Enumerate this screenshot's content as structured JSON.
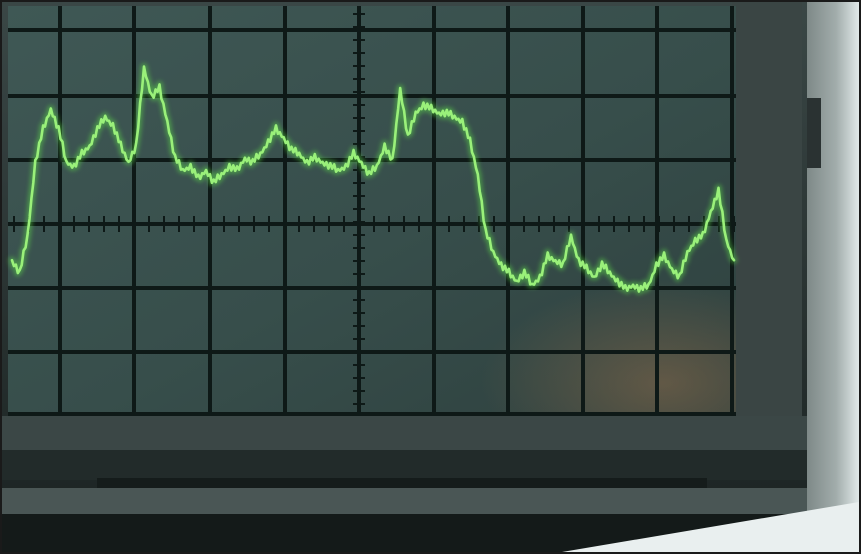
{
  "scene": {
    "subject-icon": "oscilloscope-icon",
    "colors": {
      "trace": "#9af07a",
      "trace_glow": "#5fe04a",
      "screen": "#3c5552",
      "grid": "#0e1917",
      "bezel": "#2a3433",
      "wall": "#e6eded"
    }
  },
  "trace": {
    "samples": [
      0.38,
      0.35,
      0.44,
      0.62,
      0.7,
      0.75,
      0.7,
      0.62,
      0.61,
      0.64,
      0.66,
      0.7,
      0.73,
      0.71,
      0.66,
      0.62,
      0.66,
      0.85,
      0.78,
      0.8,
      0.72,
      0.63,
      0.6,
      0.61,
      0.58,
      0.6,
      0.57,
      0.59,
      0.61,
      0.6,
      0.63,
      0.62,
      0.64,
      0.67,
      0.7,
      0.68,
      0.65,
      0.64,
      0.62,
      0.63,
      0.62,
      0.61,
      0.6,
      0.61,
      0.64,
      0.62,
      0.59,
      0.61,
      0.66,
      0.62,
      0.8,
      0.68,
      0.74,
      0.76,
      0.75,
      0.74,
      0.74,
      0.73,
      0.72,
      0.67,
      0.59,
      0.45,
      0.4,
      0.37,
      0.35,
      0.33,
      0.35,
      0.32,
      0.34,
      0.39,
      0.38,
      0.37,
      0.44,
      0.38,
      0.36,
      0.34,
      0.37,
      0.35,
      0.33,
      0.31,
      0.32,
      0.31,
      0.32,
      0.37,
      0.39,
      0.36,
      0.34,
      0.4,
      0.43,
      0.44,
      0.5,
      0.55,
      0.43,
      0.38
    ]
  }
}
